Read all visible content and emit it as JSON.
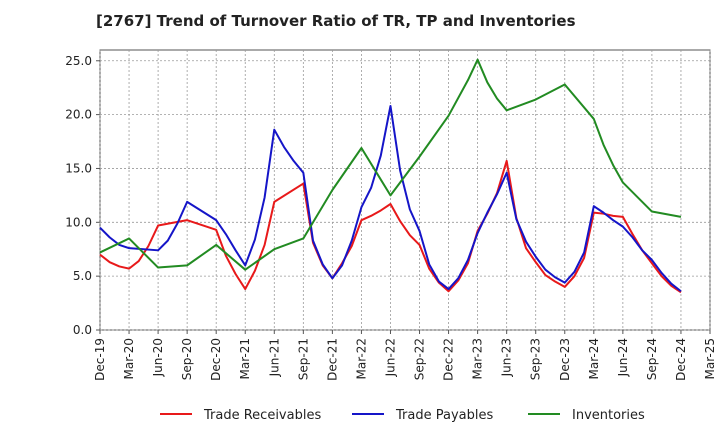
{
  "chart_data": {
    "type": "line",
    "title": "[2767]  Trend of Turnover Ratio of TR, TP and Inventories",
    "xlabel": "",
    "ylabel": "",
    "ylim": [
      0,
      26
    ],
    "y_ticks": [
      "0.0",
      "5.0",
      "10.0",
      "15.0",
      "20.0",
      "25.0"
    ],
    "x_ticks": [
      "Dec-19",
      "Mar-20",
      "Jun-20",
      "Sep-20",
      "Dec-20",
      "Mar-21",
      "Jun-21",
      "Sep-21",
      "Dec-21",
      "Mar-22",
      "Jun-22",
      "Sep-22",
      "Dec-22",
      "Mar-23",
      "Jun-23",
      "Sep-23",
      "Dec-23",
      "Mar-24",
      "Jun-24",
      "Sep-24",
      "Dec-24",
      "Mar-25"
    ],
    "grid": true,
    "legend_position": "bottom",
    "series": [
      {
        "name": "Trade Receivables",
        "color": "#e8191a",
        "points": [
          [
            "Dec-19",
            7.0
          ],
          [
            "Jan-20",
            6.3
          ],
          [
            "Feb-20",
            5.9
          ],
          [
            "Mar-20",
            5.7
          ],
          [
            "Apr-20",
            6.4
          ],
          [
            "May-20",
            7.8
          ],
          [
            "Jun-20",
            9.7
          ],
          [
            "Sep-20",
            10.2
          ],
          [
            "Dec-20",
            9.3
          ],
          [
            "Jan-21",
            6.9
          ],
          [
            "Feb-21",
            5.2
          ],
          [
            "Mar-21",
            3.8
          ],
          [
            "Apr-21",
            5.5
          ],
          [
            "May-21",
            7.9
          ],
          [
            "Jun-21",
            11.9
          ],
          [
            "Sep-21",
            13.6
          ],
          [
            "Oct-21",
            8.1
          ],
          [
            "Nov-21",
            6.0
          ],
          [
            "Dec-21",
            4.8
          ],
          [
            "Jan-22",
            6.2
          ],
          [
            "Feb-22",
            7.8
          ],
          [
            "Mar-22",
            10.2
          ],
          [
            "Apr-22",
            10.6
          ],
          [
            "May-22",
            11.1
          ],
          [
            "Jun-22",
            11.7
          ],
          [
            "Jul-22",
            10.1
          ],
          [
            "Aug-22",
            8.8
          ],
          [
            "Sep-22",
            7.9
          ],
          [
            "Oct-22",
            5.7
          ],
          [
            "Nov-22",
            4.4
          ],
          [
            "Dec-22",
            3.6
          ],
          [
            "Jan-23",
            4.6
          ],
          [
            "Feb-23",
            6.2
          ],
          [
            "Mar-23",
            9.2
          ],
          [
            "Apr-23",
            10.8
          ],
          [
            "May-23",
            12.7
          ],
          [
            "Jun-23",
            15.7
          ],
          [
            "Jul-23",
            10.4
          ],
          [
            "Aug-23",
            7.6
          ],
          [
            "Sep-23",
            6.3
          ],
          [
            "Oct-23",
            5.1
          ],
          [
            "Nov-23",
            4.5
          ],
          [
            "Dec-23",
            4.0
          ],
          [
            "Jan-24",
            5.0
          ],
          [
            "Feb-24",
            6.7
          ],
          [
            "Mar-24",
            10.9
          ],
          [
            "Apr-24",
            10.8
          ],
          [
            "May-24",
            10.6
          ],
          [
            "Jun-24",
            10.5
          ],
          [
            "Jul-24",
            8.9
          ],
          [
            "Aug-24",
            7.4
          ],
          [
            "Sep-24",
            6.2
          ],
          [
            "Oct-24",
            5.0
          ],
          [
            "Nov-24",
            4.1
          ],
          [
            "Dec-24",
            3.5
          ]
        ]
      },
      {
        "name": "Trade Payables",
        "color": "#1515c8",
        "points": [
          [
            "Dec-19",
            9.5
          ],
          [
            "Jan-20",
            8.6
          ],
          [
            "Feb-20",
            7.9
          ],
          [
            "Mar-20",
            7.6
          ],
          [
            "Jun-20",
            7.4
          ],
          [
            "Jul-20",
            8.3
          ],
          [
            "Aug-20",
            9.9
          ],
          [
            "Sep-20",
            11.9
          ],
          [
            "Dec-20",
            10.2
          ],
          [
            "Jan-21",
            8.9
          ],
          [
            "Feb-21",
            7.4
          ],
          [
            "Mar-21",
            6.0
          ],
          [
            "Apr-21",
            8.4
          ],
          [
            "May-21",
            12.3
          ],
          [
            "Jun-21",
            18.6
          ],
          [
            "Jul-21",
            17.0
          ],
          [
            "Aug-21",
            15.7
          ],
          [
            "Sep-21",
            14.6
          ],
          [
            "Oct-21",
            8.3
          ],
          [
            "Nov-21",
            6.1
          ],
          [
            "Dec-21",
            4.8
          ],
          [
            "Jan-22",
            6.0
          ],
          [
            "Feb-22",
            8.3
          ],
          [
            "Mar-22",
            11.4
          ],
          [
            "Apr-22",
            13.2
          ],
          [
            "May-22",
            16.2
          ],
          [
            "Jun-22",
            20.8
          ],
          [
            "Jul-22",
            14.8
          ],
          [
            "Aug-22",
            11.2
          ],
          [
            "Sep-22",
            9.2
          ],
          [
            "Oct-22",
            6.1
          ],
          [
            "Nov-22",
            4.5
          ],
          [
            "Dec-22",
            3.8
          ],
          [
            "Jan-23",
            4.8
          ],
          [
            "Feb-23",
            6.5
          ],
          [
            "Mar-23",
            9.0
          ],
          [
            "Apr-23",
            10.9
          ],
          [
            "May-23",
            12.6
          ],
          [
            "Jun-23",
            14.6
          ],
          [
            "Jul-23",
            10.3
          ],
          [
            "Aug-23",
            8.2
          ],
          [
            "Sep-23",
            6.8
          ],
          [
            "Oct-23",
            5.6
          ],
          [
            "Nov-23",
            4.9
          ],
          [
            "Dec-23",
            4.4
          ],
          [
            "Jan-24",
            5.4
          ],
          [
            "Feb-24",
            7.2
          ],
          [
            "Mar-24",
            11.5
          ],
          [
            "Apr-24",
            10.9
          ],
          [
            "May-24",
            10.2
          ],
          [
            "Jun-24",
            9.6
          ],
          [
            "Jul-24",
            8.6
          ],
          [
            "Aug-24",
            7.4
          ],
          [
            "Sep-24",
            6.5
          ],
          [
            "Oct-24",
            5.3
          ],
          [
            "Nov-24",
            4.3
          ],
          [
            "Dec-24",
            3.6
          ]
        ]
      },
      {
        "name": "Inventories",
        "color": "#228b22",
        "points": [
          [
            "Dec-19",
            7.2
          ],
          [
            "Mar-20",
            8.5
          ],
          [
            "Jun-20",
            5.8
          ],
          [
            "Sep-20",
            6.0
          ],
          [
            "Dec-20",
            7.9
          ],
          [
            "Mar-21",
            5.6
          ],
          [
            "Jun-21",
            7.5
          ],
          [
            "Sep-21",
            8.5
          ],
          [
            "Dec-21",
            13.0
          ],
          [
            "Mar-22",
            16.9
          ],
          [
            "Jun-22",
            12.5
          ],
          [
            "Sep-22",
            16.1
          ],
          [
            "Dec-22",
            19.9
          ],
          [
            "Feb-23",
            23.2
          ],
          [
            "Mar-23",
            25.1
          ],
          [
            "Apr-23",
            23.0
          ],
          [
            "May-23",
            21.5
          ],
          [
            "Jun-23",
            20.4
          ],
          [
            "Sep-23",
            21.4
          ],
          [
            "Dec-23",
            22.8
          ],
          [
            "Mar-24",
            19.6
          ],
          [
            "Apr-24",
            17.2
          ],
          [
            "May-24",
            15.3
          ],
          [
            "Jun-24",
            13.7
          ],
          [
            "Sep-24",
            11.0
          ],
          [
            "Dec-24",
            10.5
          ]
        ]
      }
    ]
  }
}
